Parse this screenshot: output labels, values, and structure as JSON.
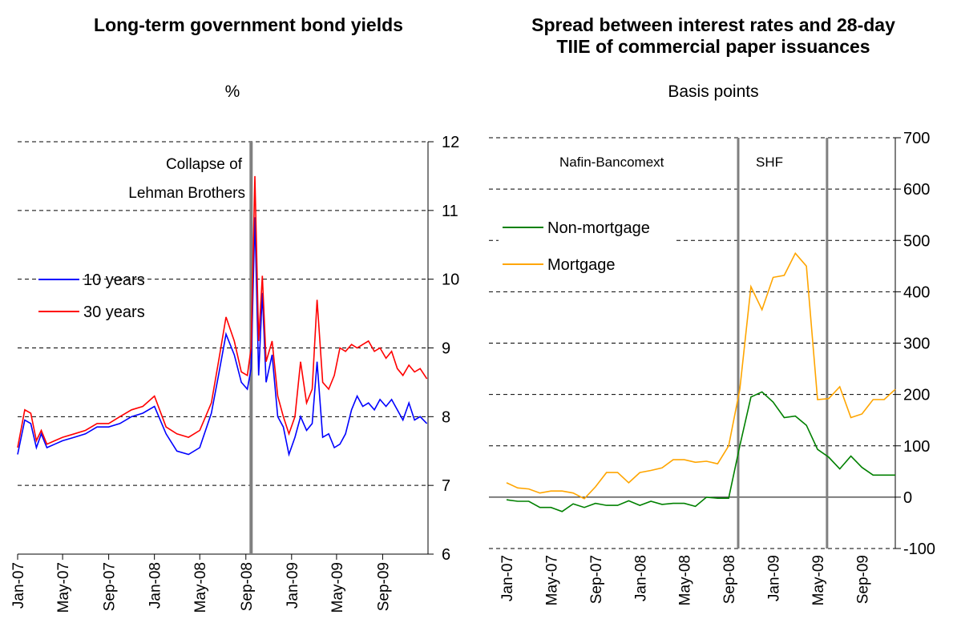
{
  "chart_data": [
    {
      "type": "line",
      "title": "Long-term government bond yields",
      "unit": "%",
      "ylim": [
        6,
        12
      ],
      "yticks": [
        6,
        7,
        8,
        9,
        10,
        11,
        12
      ],
      "y_axis_side": "right",
      "x_tick_labels": [
        "Jan-07",
        "May-07",
        "Sep-07",
        "Jan-08",
        "May-08",
        "Sep-08",
        "Jan-09",
        "May-09",
        "Sep-09"
      ],
      "x_tick_dates": [
        "2007-01-01",
        "2007-05-01",
        "2007-09-01",
        "2008-01-01",
        "2008-05-01",
        "2008-09-01",
        "2009-01-01",
        "2009-05-01",
        "2009-09-01"
      ],
      "xlim": [
        "2007-01-01",
        "2009-12-31"
      ],
      "grid": "horizontal dashed",
      "legend": "left",
      "annotation": {
        "text_lines": [
          "Collapse of",
          "Lehman Brothers"
        ],
        "date": "2008-09-15"
      },
      "series": [
        {
          "name": "10 years",
          "color": "#0000ff",
          "x": [
            "2007-01-01",
            "2007-01-20",
            "2007-02-05",
            "2007-02-20",
            "2007-03-05",
            "2007-03-20",
            "2007-04-10",
            "2007-05-01",
            "2007-06-01",
            "2007-07-01",
            "2007-08-01",
            "2007-09-01",
            "2007-10-01",
            "2007-11-01",
            "2007-12-01",
            "2008-01-01",
            "2008-02-01",
            "2008-03-01",
            "2008-04-01",
            "2008-05-01",
            "2008-06-01",
            "2008-06-20",
            "2008-07-10",
            "2008-08-01",
            "2008-08-20",
            "2008-09-05",
            "2008-09-15",
            "2008-09-25",
            "2008-10-05",
            "2008-10-15",
            "2008-10-25",
            "2008-11-10",
            "2008-11-25",
            "2008-12-10",
            "2008-12-25",
            "2009-01-10",
            "2009-01-25",
            "2009-02-10",
            "2009-02-25",
            "2009-03-10",
            "2009-03-25",
            "2009-04-10",
            "2009-04-25",
            "2009-05-10",
            "2009-05-25",
            "2009-06-10",
            "2009-06-25",
            "2009-07-10",
            "2009-07-25",
            "2009-08-10",
            "2009-08-25",
            "2009-09-10",
            "2009-09-25",
            "2009-10-10",
            "2009-10-25",
            "2009-11-10",
            "2009-11-25",
            "2009-12-10",
            "2009-12-28"
          ],
          "values": [
            7.45,
            7.95,
            7.9,
            7.55,
            7.75,
            7.55,
            7.6,
            7.65,
            7.7,
            7.75,
            7.85,
            7.85,
            7.9,
            8.0,
            8.05,
            8.15,
            7.75,
            7.5,
            7.45,
            7.55,
            8.05,
            8.6,
            9.2,
            8.9,
            8.5,
            8.4,
            8.7,
            10.9,
            8.6,
            9.8,
            8.5,
            8.9,
            8.0,
            7.85,
            7.45,
            7.7,
            8.0,
            7.8,
            7.9,
            8.8,
            7.7,
            7.75,
            7.55,
            7.6,
            7.75,
            8.1,
            8.3,
            8.15,
            8.2,
            8.1,
            8.25,
            8.15,
            8.25,
            8.1,
            7.95,
            8.2,
            7.95,
            8.0,
            7.9
          ]
        },
        {
          "name": "30 years",
          "color": "#ff0000",
          "x": [
            "2007-01-01",
            "2007-01-20",
            "2007-02-05",
            "2007-02-20",
            "2007-03-05",
            "2007-03-20",
            "2007-04-10",
            "2007-05-01",
            "2007-06-01",
            "2007-07-01",
            "2007-08-01",
            "2007-09-01",
            "2007-10-01",
            "2007-11-01",
            "2007-12-01",
            "2008-01-01",
            "2008-02-01",
            "2008-03-01",
            "2008-04-01",
            "2008-05-01",
            "2008-06-01",
            "2008-06-20",
            "2008-07-10",
            "2008-08-01",
            "2008-08-20",
            "2008-09-05",
            "2008-09-15",
            "2008-09-25",
            "2008-10-05",
            "2008-10-15",
            "2008-10-25",
            "2008-11-10",
            "2008-11-25",
            "2008-12-10",
            "2008-12-25",
            "2009-01-10",
            "2009-01-25",
            "2009-02-10",
            "2009-02-25",
            "2009-03-10",
            "2009-03-25",
            "2009-04-10",
            "2009-04-25",
            "2009-05-10",
            "2009-05-25",
            "2009-06-10",
            "2009-06-25",
            "2009-07-10",
            "2009-07-25",
            "2009-08-10",
            "2009-08-25",
            "2009-09-10",
            "2009-09-25",
            "2009-10-10",
            "2009-10-25",
            "2009-11-10",
            "2009-11-25",
            "2009-12-10",
            "2009-12-28"
          ],
          "values": [
            7.55,
            8.1,
            8.05,
            7.65,
            7.8,
            7.6,
            7.65,
            7.7,
            7.75,
            7.8,
            7.9,
            7.9,
            8.0,
            8.1,
            8.15,
            8.3,
            7.85,
            7.75,
            7.7,
            7.8,
            8.2,
            8.8,
            9.45,
            9.1,
            8.65,
            8.6,
            9.0,
            11.5,
            9.1,
            10.05,
            8.8,
            9.1,
            8.3,
            8.0,
            7.75,
            8.0,
            8.8,
            8.2,
            8.4,
            9.7,
            8.5,
            8.4,
            8.6,
            9.0,
            8.95,
            9.05,
            9.0,
            9.05,
            9.1,
            8.95,
            9.0,
            8.85,
            8.95,
            8.7,
            8.6,
            8.75,
            8.65,
            8.7,
            8.55
          ]
        }
      ]
    },
    {
      "type": "line",
      "title_lines": [
        "Spread between interest rates and 28-day",
        "TIIE of commercial paper issuances"
      ],
      "unit": "Basis points",
      "ylim": [
        -100,
        700
      ],
      "yticks": [
        -100,
        0,
        100,
        200,
        300,
        400,
        500,
        600,
        700
      ],
      "y_axis_side": "right",
      "x_tick_labels": [
        "Jan-07",
        "May-07",
        "Sep-07",
        "Jan-08",
        "May-08",
        "Sep-08",
        "Jan-09",
        "May-09",
        "Sep-09"
      ],
      "x_tick_index": [
        0,
        4,
        8,
        12,
        16,
        20,
        24,
        28,
        32
      ],
      "x_count": 36,
      "grid": "horizontal dashed",
      "legend": "top-left",
      "annotations": [
        {
          "text": "Nafin-Bancomext",
          "index": 21
        },
        {
          "text": "SHF",
          "index": 29
        }
      ],
      "series": [
        {
          "name": "Non-mortgage",
          "color": "#008000",
          "values": [
            -5,
            -8,
            -8,
            -20,
            -20,
            -28,
            -13,
            -20,
            -12,
            -16,
            -16,
            -7,
            -16,
            -8,
            -14,
            -12,
            -12,
            -18,
            0,
            -2,
            -2,
            100,
            195,
            205,
            185,
            155,
            158,
            140,
            93,
            78,
            55,
            80,
            58,
            43,
            43,
            43
          ]
        },
        {
          "name": "Mortgage",
          "color": "#ffa500",
          "values": [
            28,
            18,
            16,
            8,
            12,
            12,
            8,
            -3,
            20,
            48,
            48,
            28,
            48,
            52,
            57,
            73,
            73,
            68,
            70,
            65,
            100,
            210,
            410,
            365,
            428,
            432,
            475,
            450,
            190,
            192,
            215,
            155,
            162,
            190,
            190,
            210
          ]
        }
      ]
    }
  ]
}
